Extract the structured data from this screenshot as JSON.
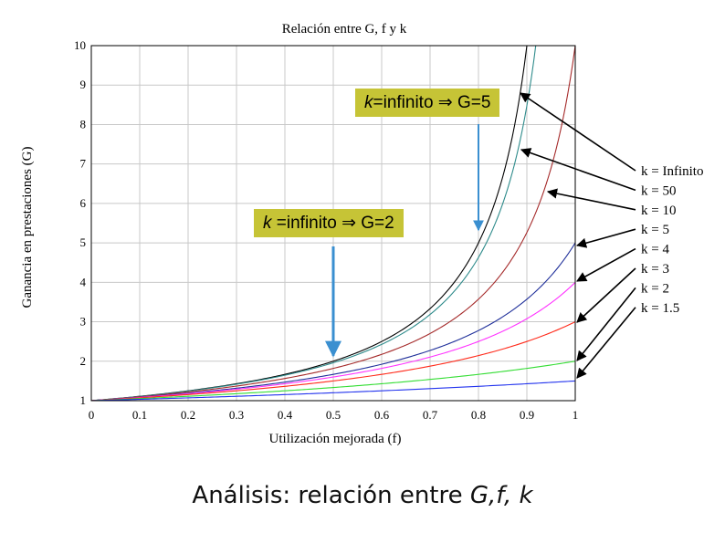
{
  "slide": {
    "caption_prefix": "Análisis: relación entre ",
    "caption_vars": "G,f, k"
  },
  "callouts": [
    {
      "var": "k",
      "text": " =infinito ⇒ G=2"
    },
    {
      "var": "k",
      "text": "=infinito ⇒ G=5"
    }
  ],
  "colors": {
    "callout_bg": "#c6c436",
    "arrow_blue": "#3a8fd0"
  },
  "chart_data": {
    "type": "line",
    "title": "Relación entre G,  f  y k",
    "xlabel": "Utilización mejorada (f)",
    "ylabel": "Ganancia en prestaciones (G)",
    "xlim": [
      0,
      1
    ],
    "ylim": [
      1,
      10
    ],
    "grid": true,
    "x_ticks": [
      "0",
      "0.1",
      "0.2",
      "0.3",
      "0.4",
      "0.5",
      "0.6",
      "0.7",
      "0.8",
      "0.9",
      "1"
    ],
    "y_ticks": [
      "1",
      "2",
      "3",
      "4",
      "5",
      "6",
      "7",
      "8",
      "9",
      "10"
    ],
    "formula": "G = 1 / ((1 - f) + f / k)",
    "legend_placement": "right",
    "series": [
      {
        "name": "k = Infinito",
        "k": "inf",
        "color": "#000000"
      },
      {
        "name": "k = 50",
        "k": 50,
        "color": "#2e8b8b"
      },
      {
        "name": "k = 10",
        "k": 10,
        "color": "#a52a2a"
      },
      {
        "name": "k = 5",
        "k": 5,
        "color": "#1f2f9a"
      },
      {
        "name": "k = 4",
        "k": 4,
        "color": "#ff33ff"
      },
      {
        "name": "k = 3",
        "k": 3,
        "color": "#ff2a1a"
      },
      {
        "name": "k = 2",
        "k": 2,
        "color": "#33dd33"
      },
      {
        "name": "k = 1.5",
        "k": 1.5,
        "color": "#2233ee"
      }
    ],
    "annotations": [
      {
        "x": 0.5,
        "y": 2
      },
      {
        "x": 0.8,
        "y": 5
      }
    ]
  }
}
